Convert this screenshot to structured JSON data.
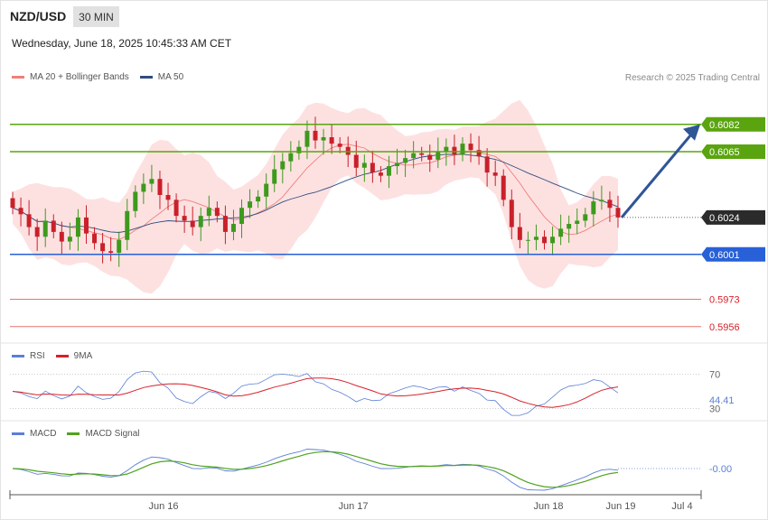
{
  "header": {
    "symbol": "NZD/USD",
    "timeframe": "30 MIN",
    "datetime": "Wednesday, June 18, 2025 10:45:33 AM CET",
    "copyright": "Research © 2025 Trading Central"
  },
  "legends": {
    "price": [
      {
        "label": "MA 20 + Bollinger Bands",
        "color": "#f07f7a"
      },
      {
        "label": "MA 50",
        "color": "#2f4d80"
      }
    ],
    "rsi": [
      {
        "label": "RSI",
        "color": "#5b7fd6"
      },
      {
        "label": "9MA",
        "color": "#d8212a"
      }
    ],
    "macd": [
      {
        "label": "MACD",
        "color": "#5b7fd6"
      },
      {
        "label": "MACD Signal",
        "color": "#4fa31f"
      }
    ]
  },
  "colors": {
    "resistance": "#5aa50f",
    "support": "#2860d8",
    "support_light": "#e8736f",
    "current": "#2b2b2b",
    "bull_candle": "#3d9a1d",
    "bear_candle": "#c9202a",
    "band_fill": "#fde1e1",
    "arrow": "#2f5596"
  },
  "chart_data": [
    {
      "type": "candlestick",
      "title": "NZD/USD",
      "timeframe": "30 MIN",
      "x_ticks": [
        "Jun 16",
        "Jun 17",
        "Jun 18",
        "Jun 19",
        "Jul 4"
      ],
      "ylim": [
        0.5948,
        0.6092
      ],
      "levels": [
        {
          "value": 0.6082,
          "label": "0.6082",
          "kind": "resistance"
        },
        {
          "value": 0.6065,
          "label": "0.6065",
          "kind": "resistance"
        },
        {
          "value": 0.6024,
          "label": "0.6024",
          "kind": "current"
        },
        {
          "value": 0.6001,
          "label": "0.6001",
          "kind": "support"
        },
        {
          "value": 0.5973,
          "label": "0.5973",
          "kind": "support_light"
        },
        {
          "value": 0.5956,
          "label": "0.5956",
          "kind": "support_light"
        }
      ],
      "projection": {
        "from": 0.6024,
        "to": 0.6082
      },
      "closes": [
        0.603,
        0.6026,
        0.6018,
        0.6012,
        0.6022,
        0.6015,
        0.6009,
        0.6012,
        0.6024,
        0.6014,
        0.6008,
        0.6003,
        0.6002,
        0.601,
        0.6028,
        0.604,
        0.6045,
        0.6048,
        0.6038,
        0.6035,
        0.6025,
        0.6022,
        0.6018,
        0.6025,
        0.603,
        0.6025,
        0.6015,
        0.602,
        0.603,
        0.6034,
        0.6037,
        0.6045,
        0.6054,
        0.6059,
        0.6064,
        0.6068,
        0.6078,
        0.6072,
        0.6074,
        0.607,
        0.6068,
        0.6063,
        0.6055,
        0.6058,
        0.6052,
        0.605,
        0.6056,
        0.6058,
        0.6061,
        0.6064,
        0.6063,
        0.606,
        0.6065,
        0.6068,
        0.6063,
        0.607,
        0.6066,
        0.6062,
        0.6052,
        0.605,
        0.6035,
        0.6018,
        0.601,
        0.601,
        0.6012,
        0.6008,
        0.6012,
        0.6017,
        0.602,
        0.6022,
        0.6026,
        0.6034,
        0.6035,
        0.603,
        0.6024
      ],
      "rsi": {
        "levels": [
          70,
          30
        ],
        "value": "44.41"
      },
      "macd": {
        "value": "-0.00"
      }
    }
  ]
}
